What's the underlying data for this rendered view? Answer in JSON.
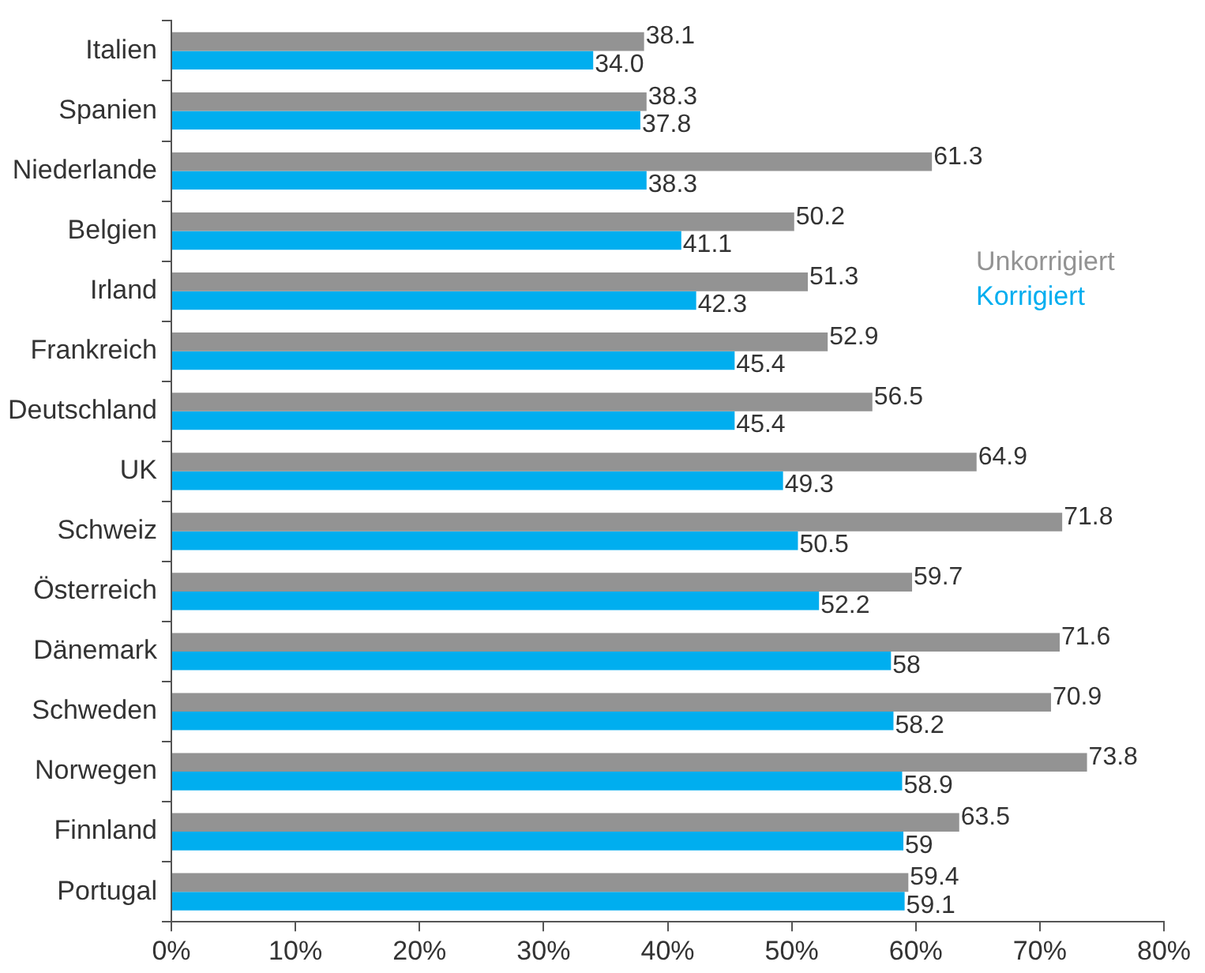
{
  "chart_data": {
    "type": "bar",
    "orientation": "horizontal",
    "categories": [
      "Italien",
      "Spanien",
      "Niederlande",
      "Belgien",
      "Irland",
      "Frankreich",
      "Deutschland",
      "UK",
      "Schweiz",
      "Österreich",
      "Dänemark",
      "Schweden",
      "Norwegen",
      "Finnland",
      "Portugal"
    ],
    "series": [
      {
        "name": "Unkorrigiert",
        "color": "#939393",
        "values": [
          38.1,
          38.3,
          61.3,
          50.2,
          51.3,
          52.9,
          56.5,
          64.9,
          71.8,
          59.7,
          71.6,
          70.9,
          73.8,
          63.5,
          59.4
        ],
        "value_labels": [
          "38.1",
          "38.3",
          "61.3",
          "50.2",
          "51.3",
          "52.9",
          "56.5",
          "64.9",
          "71.8",
          "59.7",
          "71.6",
          "70.9",
          "73.8",
          "63.5",
          "59.4"
        ]
      },
      {
        "name": "Korrigiert",
        "color": "#00aeef",
        "values": [
          34.0,
          37.8,
          38.3,
          41.1,
          42.3,
          45.4,
          45.4,
          49.3,
          50.5,
          52.2,
          58,
          58.2,
          58.9,
          59,
          59.1
        ],
        "value_labels": [
          "34.0",
          "37.8",
          "38.3",
          "41.1",
          "42.3",
          "45.4",
          "45.4",
          "49.3",
          "50.5",
          "52.2",
          "58",
          "58.2",
          "58.9",
          "59",
          "59.1"
        ]
      }
    ],
    "xlim": [
      0,
      80
    ],
    "xticks": [
      {
        "value": 0,
        "label": "0%"
      },
      {
        "value": 10,
        "label": "10%"
      },
      {
        "value": 20,
        "label": "20%"
      },
      {
        "value": 30,
        "label": "30%"
      },
      {
        "value": 40,
        "label": "40%"
      },
      {
        "value": 50,
        "label": "50%"
      },
      {
        "value": 60,
        "label": "60%"
      },
      {
        "value": 70,
        "label": "70%"
      },
      {
        "value": 80,
        "label": "80%"
      }
    ],
    "grid": false,
    "legend": "right"
  }
}
